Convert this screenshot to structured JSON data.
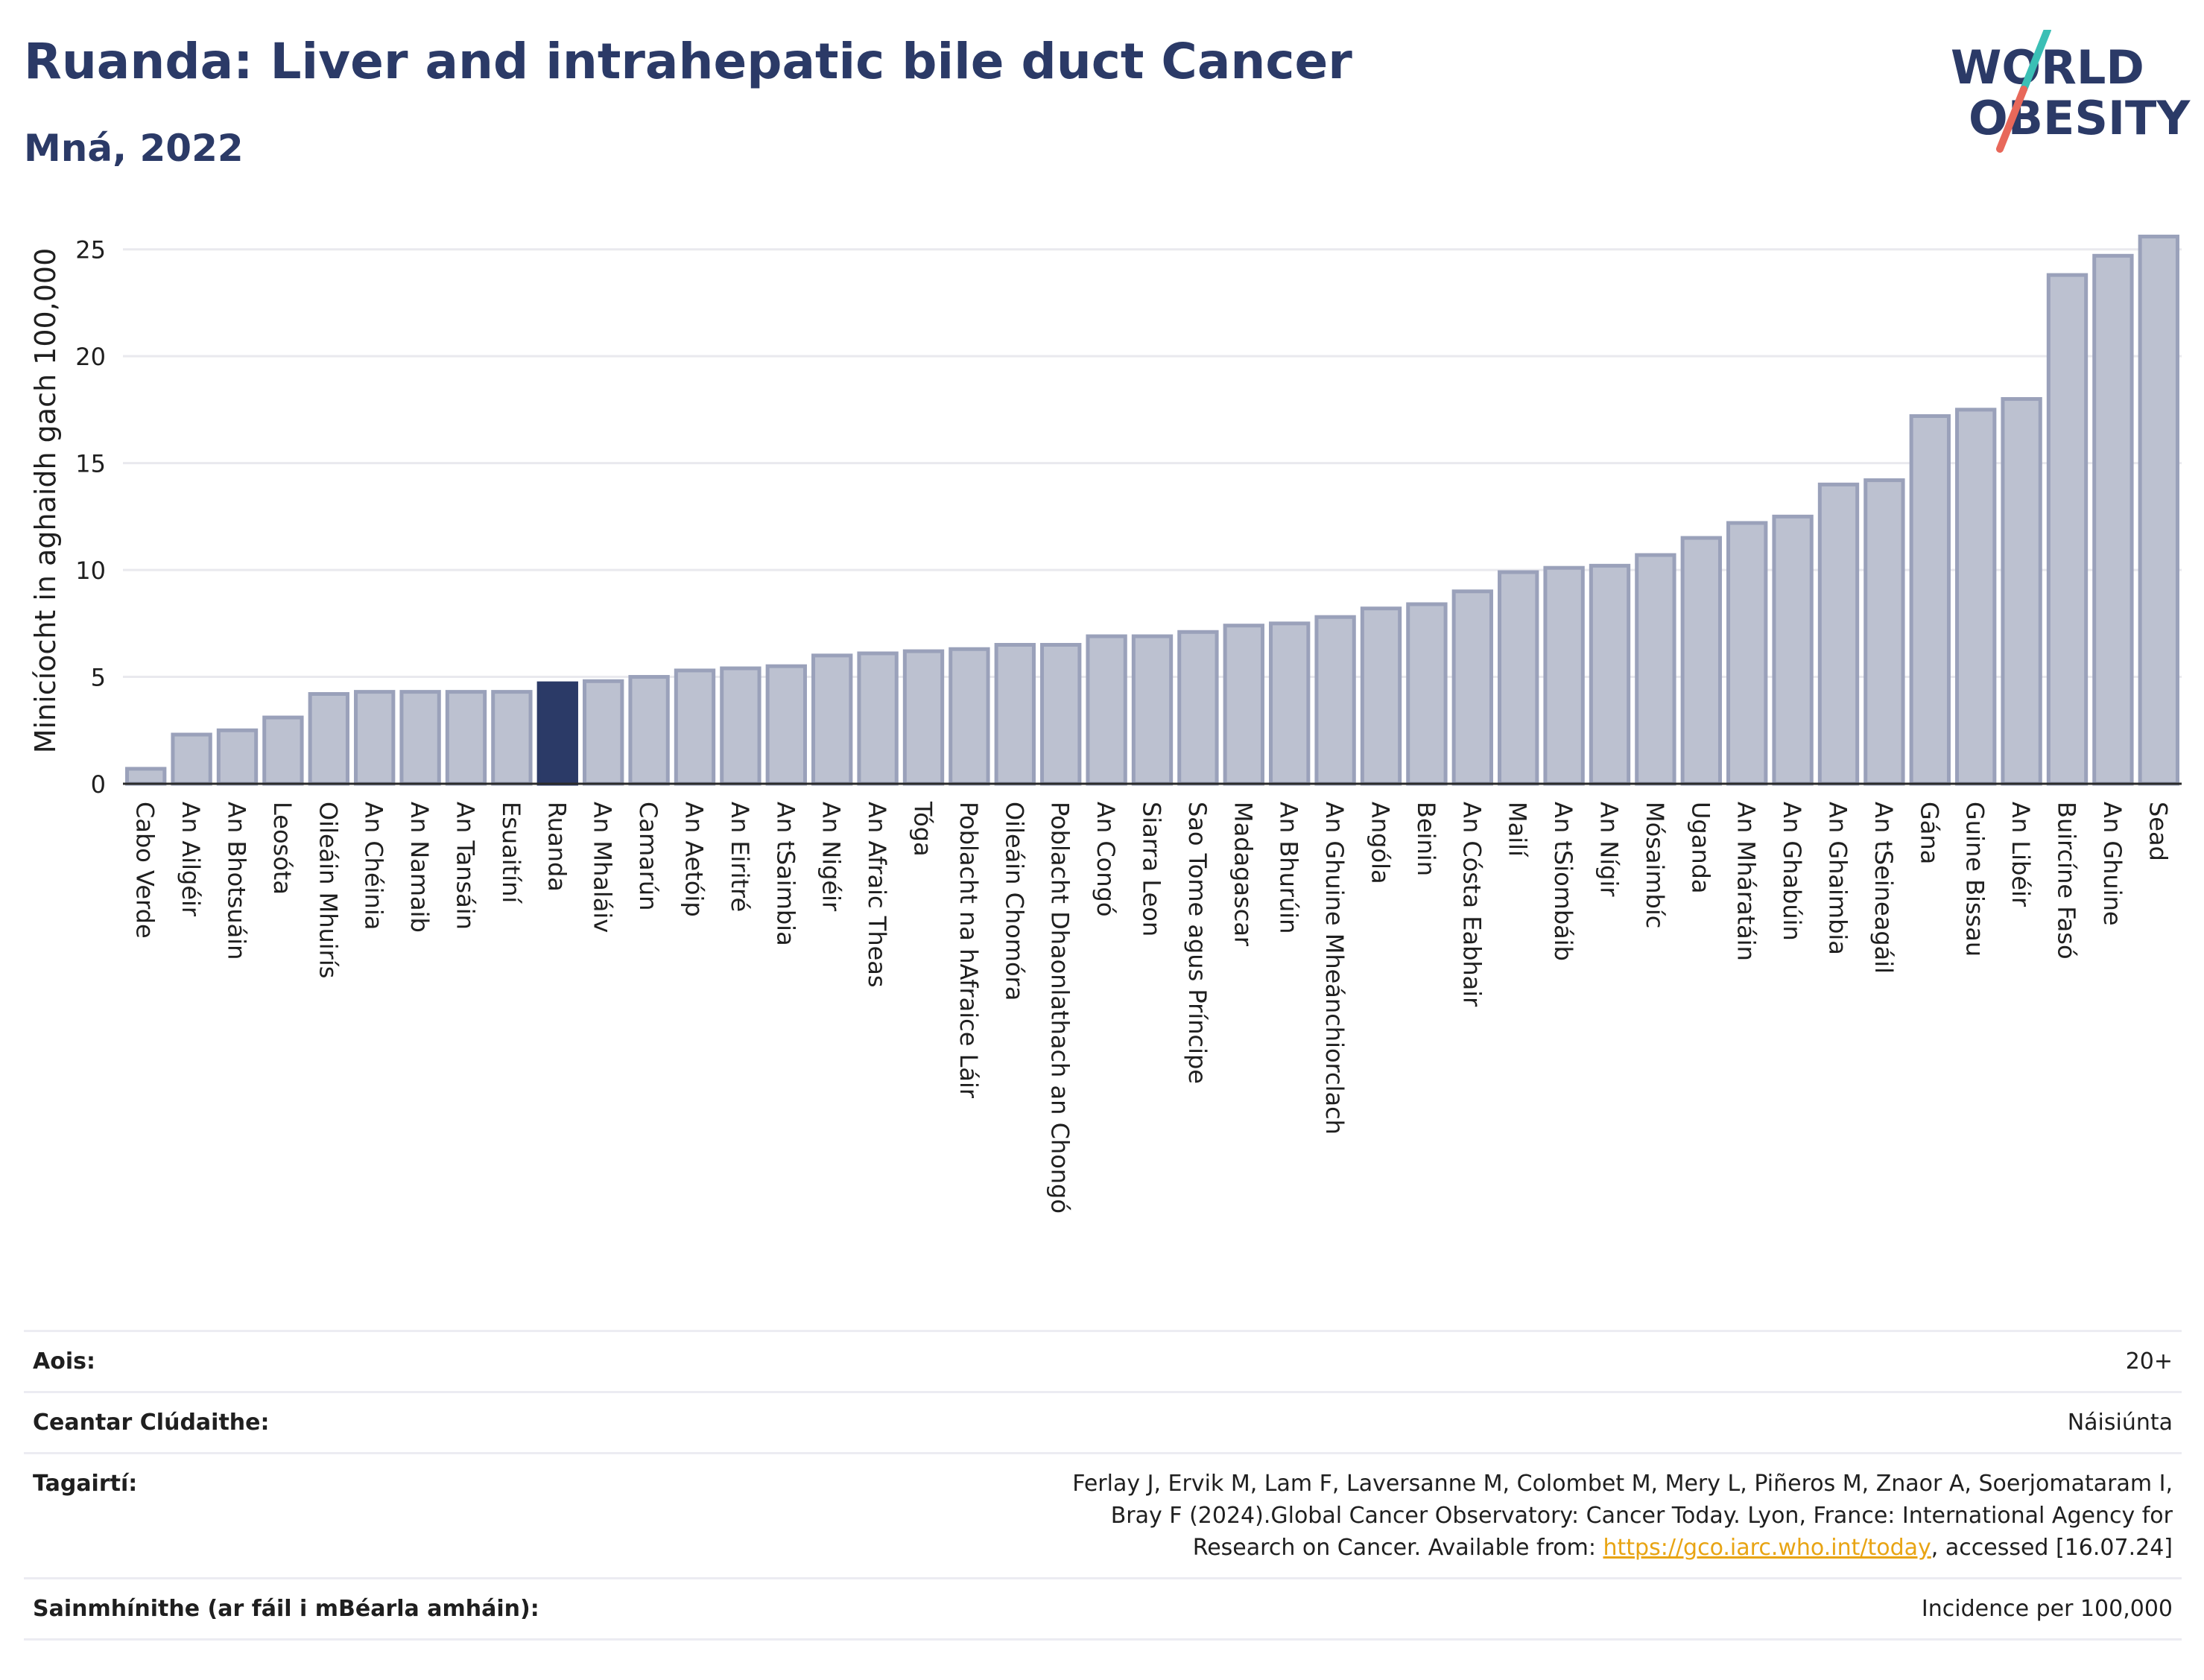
{
  "title": "Ruanda: Liver and intrahepatic bile duct Cancer",
  "subtitle": "Mná, 2022",
  "logo": {
    "line1": "WORLD",
    "line2": "OBESITY",
    "color_text": "#2b3a67",
    "color_slash_top": "#3bbfb5",
    "color_slash_bottom": "#e8685a"
  },
  "chart_data": {
    "type": "bar",
    "ylabel": "Minicíocht in aghaidh gach 100,000",
    "xlabel": "",
    "ylim": [
      0,
      26
    ],
    "yticks": [
      0,
      5,
      10,
      15,
      20,
      25
    ],
    "grid": true,
    "highlight": "Ruanda",
    "colors": {
      "bar": "#bcc1d0",
      "bar_border": "#9aa1ba",
      "highlight": "#2b3a67",
      "grid": "#e9e9ee",
      "axis": "#2b2b2b"
    },
    "categories": [
      "Cabo Verde",
      "An Ailgéir",
      "An Bhotsuáin",
      "Leosóta",
      "Oileáin Mhuirís",
      "An Chéinia",
      "An Namaib",
      "An Tansáin",
      "Esuaitíní",
      "Ruanda",
      "An Mhaláiv",
      "Camarún",
      "An Aetóip",
      "An Eiritré",
      "An tSaimbia",
      "An Nigéir",
      "An Afraic Theas",
      "Tóga",
      "Poblacht na hAfraice Láir",
      "Oileáin Chomóra",
      "Poblacht Dhaonlathach an Chongó",
      "An Congó",
      "Siarra Leon",
      "Sao Tome agus Príncipe",
      "Madagascar",
      "An Bhurúin",
      "An Ghuine Mheánchiorclach",
      "Angóla",
      "Beinin",
      "An Cósta Eabhair",
      "Mailí",
      "An tSiombáib",
      "An Nígir",
      "Mósaimbíc",
      "Uganda",
      "An Mháratáin",
      "An Ghabúin",
      "An Ghaimbia",
      "An tSeineagáil",
      "Gána",
      "Guine Bissau",
      "An Libéir",
      "Buircíne Fasó",
      "An Ghuine",
      "Sead"
    ],
    "values": [
      0.7,
      2.3,
      2.5,
      3.1,
      4.2,
      4.3,
      4.3,
      4.3,
      4.3,
      4.7,
      4.8,
      5.0,
      5.3,
      5.4,
      5.5,
      6.0,
      6.1,
      6.2,
      6.3,
      6.5,
      6.5,
      6.9,
      6.9,
      7.1,
      7.4,
      7.5,
      7.8,
      8.2,
      8.4,
      9.0,
      9.9,
      10.1,
      10.2,
      10.7,
      11.5,
      12.2,
      12.5,
      14.0,
      14.2,
      17.2,
      17.5,
      18.0,
      23.8,
      24.7,
      25.6
    ]
  },
  "info": {
    "age_label": "Aois:",
    "age_value": "20+",
    "area_label": "Ceantar Clúdaithe:",
    "area_value": "Náisiúnta",
    "ref_label": "Tagairtí:",
    "ref_text_1": "Ferlay J, Ervik M, Lam F, Laversanne M, Colombet M, Mery L, Piñeros M, Znaor A, Soerjomataram I, Bray F (2024).Global Cancer Observatory: Cancer Today. Lyon, France: International Agency for Research on Cancer. Available from: ",
    "ref_link": "https://gco.iarc.who.int/today",
    "ref_text_2": ", accessed [16.07.24]",
    "def_label": "Sainmhínithe (ar fáil i mBéarla amháin):",
    "def_value": "Incidence per 100,000"
  }
}
